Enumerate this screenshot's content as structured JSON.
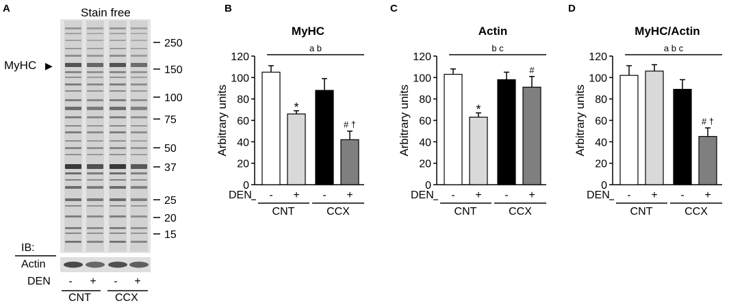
{
  "panel_a": {
    "letter": "A",
    "title": "Stain free",
    "marker_label": "MyHC",
    "marker_arrow": "▶",
    "mw_ladder": [
      "250",
      "150",
      "100",
      "75",
      "50",
      "37",
      "25",
      "20",
      "15"
    ],
    "ib_label": "IB:",
    "actin_label": "Actin",
    "den_label": "DEN",
    "den_signs": [
      "-",
      "+",
      "-",
      "+"
    ],
    "groups": [
      "CNT",
      "CCX"
    ]
  },
  "chart_data": [
    {
      "type": "bar",
      "panel": "B",
      "title": "MyHC",
      "ylabel": "Arbitrary units",
      "ylim": [
        0,
        120
      ],
      "yticks": [
        "0",
        "20",
        "40",
        "60",
        "80",
        "100",
        "120"
      ],
      "values": [
        105,
        66,
        88,
        42
      ],
      "errors": [
        6,
        3,
        11,
        8
      ],
      "bar_colors": [
        "#ffffff",
        "#d9d9d9",
        "#000000",
        "#7f7f7f"
      ],
      "marks": [
        "",
        "*",
        "",
        "# †"
      ],
      "sig_label": "a b",
      "den_label": "DEN",
      "den_signs": [
        "-",
        "+",
        "-",
        "+"
      ],
      "groups": [
        "CNT",
        "CCX"
      ]
    },
    {
      "type": "bar",
      "panel": "C",
      "title": "Actin",
      "ylabel": "Arbitrary units",
      "ylim": [
        0,
        120
      ],
      "yticks": [
        "0",
        "20",
        "40",
        "60",
        "80",
        "100",
        "120"
      ],
      "values": [
        103,
        63,
        98,
        91
      ],
      "errors": [
        5,
        4,
        7,
        10
      ],
      "bar_colors": [
        "#ffffff",
        "#d9d9d9",
        "#000000",
        "#7f7f7f"
      ],
      "marks": [
        "",
        "*",
        "",
        "#"
      ],
      "sig_label": "b c",
      "den_label": "DEN",
      "den_signs": [
        "-",
        "+",
        "-",
        "+"
      ],
      "groups": [
        "CNT",
        "CCX"
      ]
    },
    {
      "type": "bar",
      "panel": "D",
      "title": "MyHC/Actin",
      "ylabel": "Arbitrary units",
      "ylim": [
        0,
        120
      ],
      "yticks": [
        "0",
        "20",
        "40",
        "60",
        "80",
        "100",
        "120"
      ],
      "values": [
        102,
        106,
        89,
        45
      ],
      "errors": [
        9,
        6,
        9,
        8
      ],
      "bar_colors": [
        "#ffffff",
        "#d9d9d9",
        "#000000",
        "#7f7f7f"
      ],
      "marks": [
        "",
        "",
        "",
        "# †"
      ],
      "sig_label": "a b c",
      "den_label": "DEN",
      "den_signs": [
        "-",
        "+",
        "-",
        "+"
      ],
      "groups": [
        "CNT",
        "CCX"
      ]
    }
  ]
}
